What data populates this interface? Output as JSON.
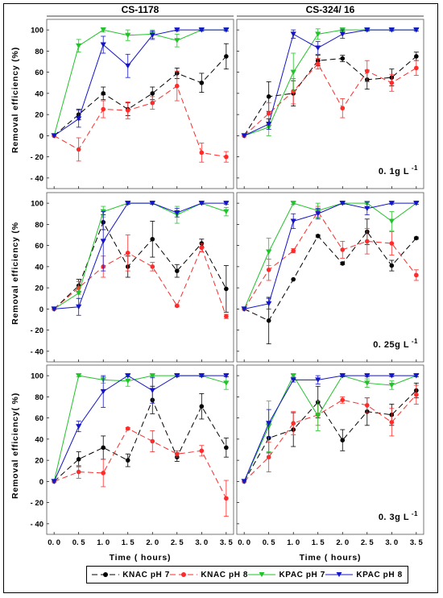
{
  "chart_data": {
    "type": "line",
    "column_titles": [
      "CS-1178",
      "CS-324/ 16"
    ],
    "row_labels": [
      "0. 1g L",
      "0. 25g L",
      "0. 3g L"
    ],
    "dose_superscript": "-1",
    "ylabel_top": "Removal  efficiency (%)",
    "ylabel_middle": "Removal  efficiency  (%",
    "ylabel_bottom": "Removal  efficiency( %)",
    "xlabel": "Time  ( hours)",
    "x": [
      0.0,
      0.5,
      1.0,
      1.5,
      2.0,
      2.5,
      3.0,
      3.5
    ],
    "x_tick_labels": [
      "0. 0",
      "0. 5",
      "1. 0",
      "1. 5",
      "2. 0",
      "2. 5",
      "3. 0",
      "3. 5"
    ],
    "y_ticks": [
      -40,
      -20,
      0,
      20,
      40,
      60,
      80,
      100
    ],
    "y_tick_labels": [
      "- 40",
      "- 20",
      "0",
      "20",
      "40",
      "60",
      "80",
      "100"
    ],
    "ylim": [
      -50,
      110
    ],
    "xlim": [
      -0.15,
      3.65
    ],
    "legend": [
      {
        "name": "KNAC  pH  7",
        "color": "#000000",
        "marker": "circle",
        "dash": "long"
      },
      {
        "name": "KNAC  pH  8",
        "color": "#ff2a2a",
        "marker": "circle",
        "dash": "long"
      },
      {
        "name": "KPAC  pH  7",
        "color": "#22c32a",
        "marker": "triangle-down",
        "dash": "solid"
      },
      {
        "name": "KPAC  pH  8",
        "color": "#1414c8",
        "marker": "triangle-down",
        "dash": "solid"
      }
    ],
    "panels": [
      {
        "row": 0,
        "col": 0,
        "series": [
          {
            "values": [
              0,
              20,
              40,
              25,
              40,
              59,
              50,
              75
            ],
            "errors": [
              0,
              5,
              6,
              6,
              6,
              5,
              9,
              12
            ]
          },
          {
            "values": [
              0,
              -13,
              25,
              24,
              31,
              47,
              -16,
              -20
            ],
            "errors": [
              0,
              11,
              8,
              8,
              6,
              14,
              9,
              5
            ]
          },
          {
            "values": [
              0,
              85,
              100,
              95,
              96,
              90,
              100,
              100
            ],
            "errors": [
              0,
              6,
              2,
              5,
              4,
              6,
              1,
              1
            ]
          },
          {
            "values": [
              0,
              16,
              86,
              66,
              95,
              100,
              100,
              100
            ],
            "errors": [
              0,
              8,
              8,
              11,
              4,
              1,
              1,
              1
            ]
          }
        ]
      },
      {
        "row": 0,
        "col": 1,
        "series": [
          {
            "values": [
              0,
              37,
              40,
              71,
              73,
              53,
              55,
              75
            ],
            "errors": [
              0,
              14,
              12,
              5,
              3,
              9,
              8,
              4
            ]
          },
          {
            "values": [
              0,
              21,
              42,
              68,
              26,
              61,
              50,
              64
            ],
            "errors": [
              0,
              10,
              12,
              5,
              9,
              10,
              8,
              7
            ]
          },
          {
            "values": [
              0,
              8,
              60,
              96,
              100,
              100,
              100,
              100
            ],
            "errors": [
              0,
              8,
              18,
              5,
              1,
              1,
              1,
              1
            ]
          },
          {
            "values": [
              0,
              11,
              96,
              83,
              96,
              100,
              100,
              100
            ],
            "errors": [
              0,
              5,
              4,
              6,
              4,
              1,
              1,
              1
            ]
          }
        ]
      },
      {
        "row": 1,
        "col": 0,
        "series": [
          {
            "values": [
              0,
              22,
              82,
              40,
              66,
              36,
              62,
              19
            ],
            "errors": [
              0,
              6,
              7,
              10,
              17,
              6,
              4,
              22
            ]
          },
          {
            "values": [
              0,
              20,
              40,
              53,
              40,
              3,
              58,
              -7
            ],
            "errors": [
              0,
              6,
              10,
              17,
              4,
              1,
              4,
              2
            ]
          },
          {
            "values": [
              0,
              15,
              92,
              100,
              100,
              89,
              100,
              92
            ],
            "errors": [
              0,
              5,
              5,
              1,
              1,
              8,
              1,
              4
            ]
          },
          {
            "values": [
              0,
              2,
              64,
              100,
              100,
              91,
              100,
              100
            ],
            "errors": [
              0,
              8,
              28,
              1,
              1,
              4,
              1,
              1
            ]
          }
        ]
      },
      {
        "row": 1,
        "col": 1,
        "series": [
          {
            "values": [
              0,
              -11,
              28,
              69,
              43,
              73,
              41,
              67
            ],
            "errors": [
              0,
              22,
              0,
              1,
              1,
              12,
              5,
              1
            ]
          },
          {
            "values": [
              0,
              37,
              55,
              92,
              56,
              64,
              62,
              32
            ],
            "errors": [
              0,
              10,
              2,
              5,
              8,
              12,
              11,
              5
            ]
          },
          {
            "values": [
              0,
              54,
              100,
              93,
              100,
              100,
              83,
              100
            ],
            "errors": [
              0,
              13,
              1,
              7,
              1,
              1,
              9,
              1
            ]
          },
          {
            "values": [
              0,
              5,
              83,
              90,
              100,
              95,
              100,
              100
            ],
            "errors": [
              0,
              5,
              7,
              5,
              1,
              6,
              1,
              1
            ]
          }
        ]
      },
      {
        "row": 2,
        "col": 0,
        "series": [
          {
            "values": [
              0,
              21,
              32,
              20,
              77,
              23,
              71,
              32
            ],
            "errors": [
              0,
              7,
              11,
              6,
              13,
              4,
              12,
              9
            ]
          },
          {
            "values": [
              0,
              9,
              8,
              50,
              38,
              26,
              29,
              -16
            ],
            "errors": [
              0,
              6,
              13,
              1,
              10,
              3,
              5,
              17
            ]
          },
          {
            "values": [
              0,
              100,
              96,
              95,
              100,
              100,
              100,
              93
            ],
            "errors": [
              0,
              1,
              3,
              5,
              1,
              1,
              1,
              6
            ]
          },
          {
            "values": [
              0,
              52,
              85,
              100,
              86,
              100,
              100,
              100
            ],
            "errors": [
              0,
              5,
              15,
              1,
              12,
              1,
              1,
              1
            ]
          }
        ]
      },
      {
        "row": 2,
        "col": 1,
        "series": [
          {
            "values": [
              0,
              41,
              49,
              75,
              39,
              66,
              63,
              86
            ],
            "errors": [
              0,
              14,
              16,
              15,
              10,
              13,
              10,
              7
            ]
          },
          {
            "values": [
              0,
              23,
              55,
              63,
              77,
              72,
              56,
              82
            ],
            "errors": [
              0,
              14,
              11,
              10,
              3,
              7,
              13,
              9
            ]
          },
          {
            "values": [
              0,
              52,
              100,
              62,
              100,
              93,
              91,
              100
            ],
            "errors": [
              0,
              24,
              1,
              14,
              1,
              4,
              4,
              1
            ]
          },
          {
            "values": [
              0,
              55,
              96,
              96,
              100,
              100,
              100,
              100
            ],
            "errors": [
              0,
              13,
              2,
              4,
              1,
              1,
              1,
              1
            ]
          }
        ]
      }
    ]
  }
}
